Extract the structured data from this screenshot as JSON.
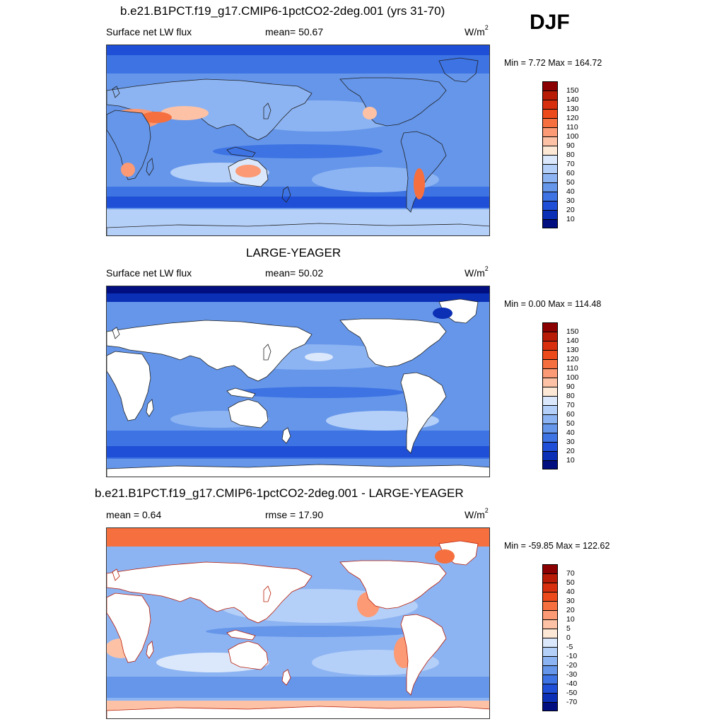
{
  "season_label": "DJF",
  "panels": [
    {
      "title": "b.e21.B1PCT.f19_g17.CMIP6-1pctCO2-2deg.001 (yrs 31-70)",
      "left_label": "Surface net LW flux",
      "center_label": "mean=  50.67",
      "units": "W/m",
      "units_sup": "2",
      "minmax": "Min =   7.72 Max = 164.72",
      "map_kind": "model",
      "colorbar_key": "absolute"
    },
    {
      "title": "LARGE-YEAGER",
      "left_label": "Surface net LW flux",
      "center_label": "mean=  50.02",
      "units": "W/m",
      "units_sup": "2",
      "minmax": "Min =   0.00 Max = 114.48",
      "map_kind": "obs",
      "colorbar_key": "absolute"
    },
    {
      "title": "b.e21.B1PCT.f19_g17.CMIP6-1pctCO2-2deg.001 - LARGE-YEAGER",
      "left_label": "mean =   0.64",
      "center_label": "rmse =  17.90",
      "units": "W/m",
      "units_sup": "2",
      "minmax": "Min = -59.85 Max = 122.62",
      "map_kind": "diff",
      "colorbar_key": "difference"
    }
  ],
  "colorbars": {
    "absolute": {
      "labels": [
        "150",
        "140",
        "130",
        "120",
        "110",
        "100",
        "90",
        "80",
        "70",
        "60",
        "50",
        "40",
        "30",
        "20",
        "10"
      ],
      "colors": [
        "#8b0000",
        "#b81c06",
        "#d8300f",
        "#ec4a1a",
        "#f6703f",
        "#fb9a74",
        "#fdc2a5",
        "#fde8d6",
        "#dbe8fb",
        "#b5d0f8",
        "#8db4f2",
        "#6596ea",
        "#3d73e3",
        "#1f4fd6",
        "#0b2fb5",
        "#000e80"
      ]
    },
    "difference": {
      "labels": [
        "70",
        "50",
        "40",
        "30",
        "20",
        "10",
        "5",
        "0",
        "-5",
        "-10",
        "-20",
        "-30",
        "-40",
        "-50",
        "-70"
      ],
      "colors": [
        "#8b0000",
        "#b81c06",
        "#d8300f",
        "#ec4a1a",
        "#f6703f",
        "#fb9a74",
        "#fdc2a5",
        "#fde8d6",
        "#dbe8fb",
        "#b5d0f8",
        "#8db4f2",
        "#6596ea",
        "#3d73e3",
        "#1f4fd6",
        "#0b2fb5",
        "#000e80"
      ]
    }
  }
}
